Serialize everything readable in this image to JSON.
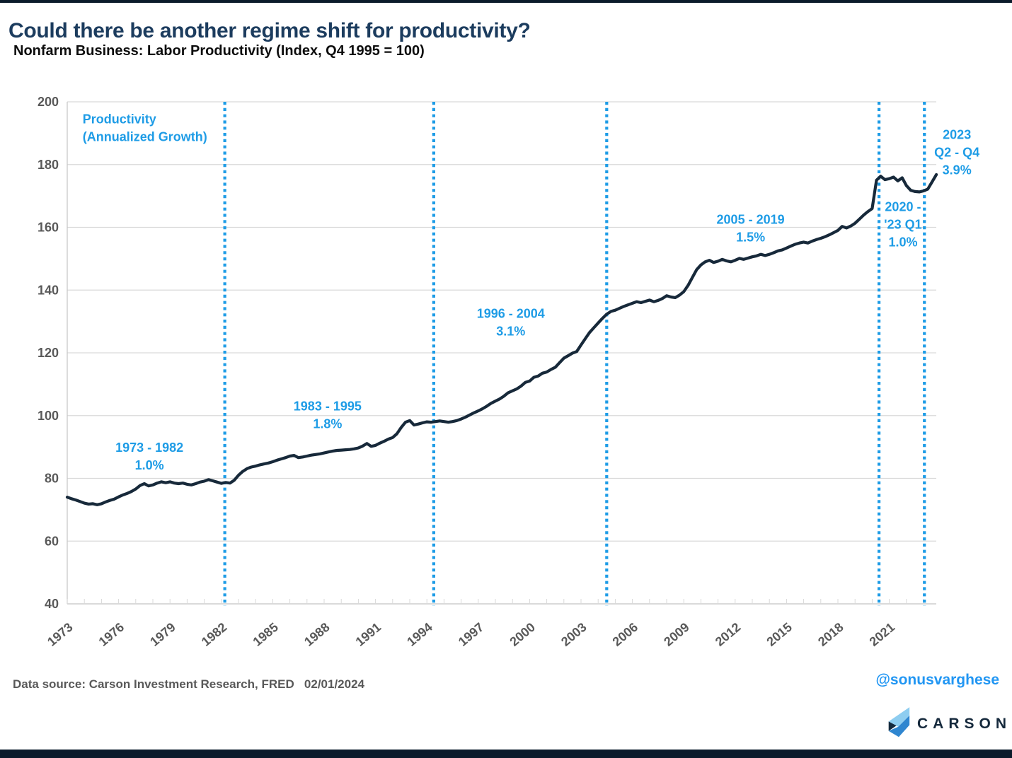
{
  "header": {
    "title": "Could there be another regime shift for productivity?",
    "subtitle": "Nonfarm Business: Labor Productivity (Index, Q4 1995 = 100)"
  },
  "footer": {
    "source": "Data source: Carson Investment Research, FRED   02/01/2024",
    "handle": "@sonusvarghese",
    "brand": "CARSON"
  },
  "colors": {
    "accent": "#1e9ce6",
    "line": "#17293a",
    "title": "#1c3c5e",
    "grid": "#d9d9d9",
    "axis_text": "#595959",
    "bar": "#0b1b2b",
    "handle": "#2196f3"
  },
  "chart_data": {
    "type": "line",
    "title": "Nonfarm Business: Labor Productivity (Index, Q4 1995 = 100)",
    "ylabel": "Index, Q4 1995 = 100",
    "ylim": [
      40,
      200
    ],
    "yticks": [
      40,
      60,
      80,
      100,
      120,
      140,
      160,
      180,
      200
    ],
    "xticks": [
      1973,
      1976,
      1979,
      1982,
      1985,
      1988,
      1991,
      1994,
      1997,
      2000,
      2003,
      2006,
      2009,
      2012,
      2015,
      2018,
      2021
    ],
    "regime_lines": [
      1982.2,
      1994.4,
      2004.5,
      2020.4,
      2023.05
    ],
    "series": [
      {
        "name": "Labor Productivity Index",
        "start_year": 1973,
        "period": "quarterly",
        "values": [
          74.0,
          73.5,
          73.1,
          72.6,
          72.1,
          71.8,
          71.9,
          71.6,
          71.9,
          72.5,
          73.0,
          73.4,
          74.1,
          74.7,
          75.2,
          75.8,
          76.6,
          77.7,
          78.3,
          77.6,
          77.9,
          78.5,
          78.9,
          78.6,
          78.9,
          78.5,
          78.3,
          78.5,
          78.1,
          77.9,
          78.3,
          78.8,
          79.1,
          79.6,
          79.2,
          78.8,
          78.4,
          78.7,
          78.5,
          79.4,
          81.0,
          82.2,
          83.1,
          83.6,
          83.9,
          84.3,
          84.6,
          84.9,
          85.3,
          85.8,
          86.2,
          86.6,
          87.1,
          87.3,
          86.6,
          86.8,
          87.1,
          87.4,
          87.6,
          87.8,
          88.1,
          88.4,
          88.7,
          88.9,
          89.0,
          89.1,
          89.2,
          89.4,
          89.7,
          90.3,
          91.1,
          90.2,
          90.5,
          91.2,
          91.8,
          92.5,
          93.0,
          94.2,
          96.2,
          97.9,
          98.4,
          97.0,
          97.3,
          97.7,
          98.0,
          97.9,
          98.1,
          98.3,
          98.1,
          97.9,
          98.1,
          98.4,
          98.9,
          99.5,
          100.2,
          100.9,
          101.5,
          102.2,
          103.0,
          103.9,
          104.6,
          105.3,
          106.2,
          107.3,
          107.9,
          108.5,
          109.4,
          110.6,
          111.0,
          112.2,
          112.6,
          113.5,
          113.9,
          114.7,
          115.4,
          116.9,
          118.3,
          119.1,
          119.9,
          120.4,
          122.5,
          124.5,
          126.5,
          128.0,
          129.5,
          131.0,
          132.3,
          133.2,
          133.6,
          134.2,
          134.8,
          135.3,
          135.8,
          136.3,
          136.0,
          136.4,
          136.8,
          136.3,
          136.7,
          137.3,
          138.2,
          137.8,
          137.6,
          138.4,
          139.5,
          141.5,
          144.0,
          146.5,
          148.0,
          149.0,
          149.5,
          148.8,
          149.2,
          149.8,
          149.3,
          149.0,
          149.5,
          150.1,
          149.8,
          150.2,
          150.6,
          150.9,
          151.4,
          151.0,
          151.4,
          151.9,
          152.5,
          152.8,
          153.4,
          154.0,
          154.6,
          155.0,
          155.3,
          155.0,
          155.6,
          156.1,
          156.5,
          157.0,
          157.6,
          158.3,
          159.0,
          160.3,
          159.8,
          160.4,
          161.3,
          162.6,
          163.9,
          165.0,
          166.0,
          175.0,
          176.3,
          175.2,
          175.5,
          176.0,
          174.8,
          175.8,
          173.3,
          171.8,
          171.4,
          171.3,
          171.6,
          172.2,
          174.5,
          176.8
        ]
      }
    ],
    "annotations": [
      {
        "lines": [
          "Productivity",
          "(Annualized Growth)"
        ],
        "x": 1973.9,
        "y": 194.5,
        "align": "start"
      },
      {
        "lines": [
          "1973 - 1982",
          "1.0%"
        ],
        "x": 1977.8,
        "y": 89.8,
        "align": "middle"
      },
      {
        "lines": [
          "1983 - 1995",
          "1.8%"
        ],
        "x": 1988.2,
        "y": 103.0,
        "align": "middle"
      },
      {
        "lines": [
          "1996 - 2004",
          "3.1%"
        ],
        "x": 1998.9,
        "y": 132.5,
        "align": "middle"
      },
      {
        "lines": [
          "2005 - 2019",
          "1.5%"
        ],
        "x": 2012.9,
        "y": 162.5,
        "align": "middle"
      },
      {
        "lines": [
          "2020 -",
          "'23 Q1",
          "1.0%"
        ],
        "x": 2021.8,
        "y": 166.5,
        "align": "middle"
      },
      {
        "lines": [
          "2023",
          "Q2 - Q4",
          "3.9%"
        ],
        "x": 2024.95,
        "y": 189.5,
        "align": "middle"
      }
    ]
  }
}
